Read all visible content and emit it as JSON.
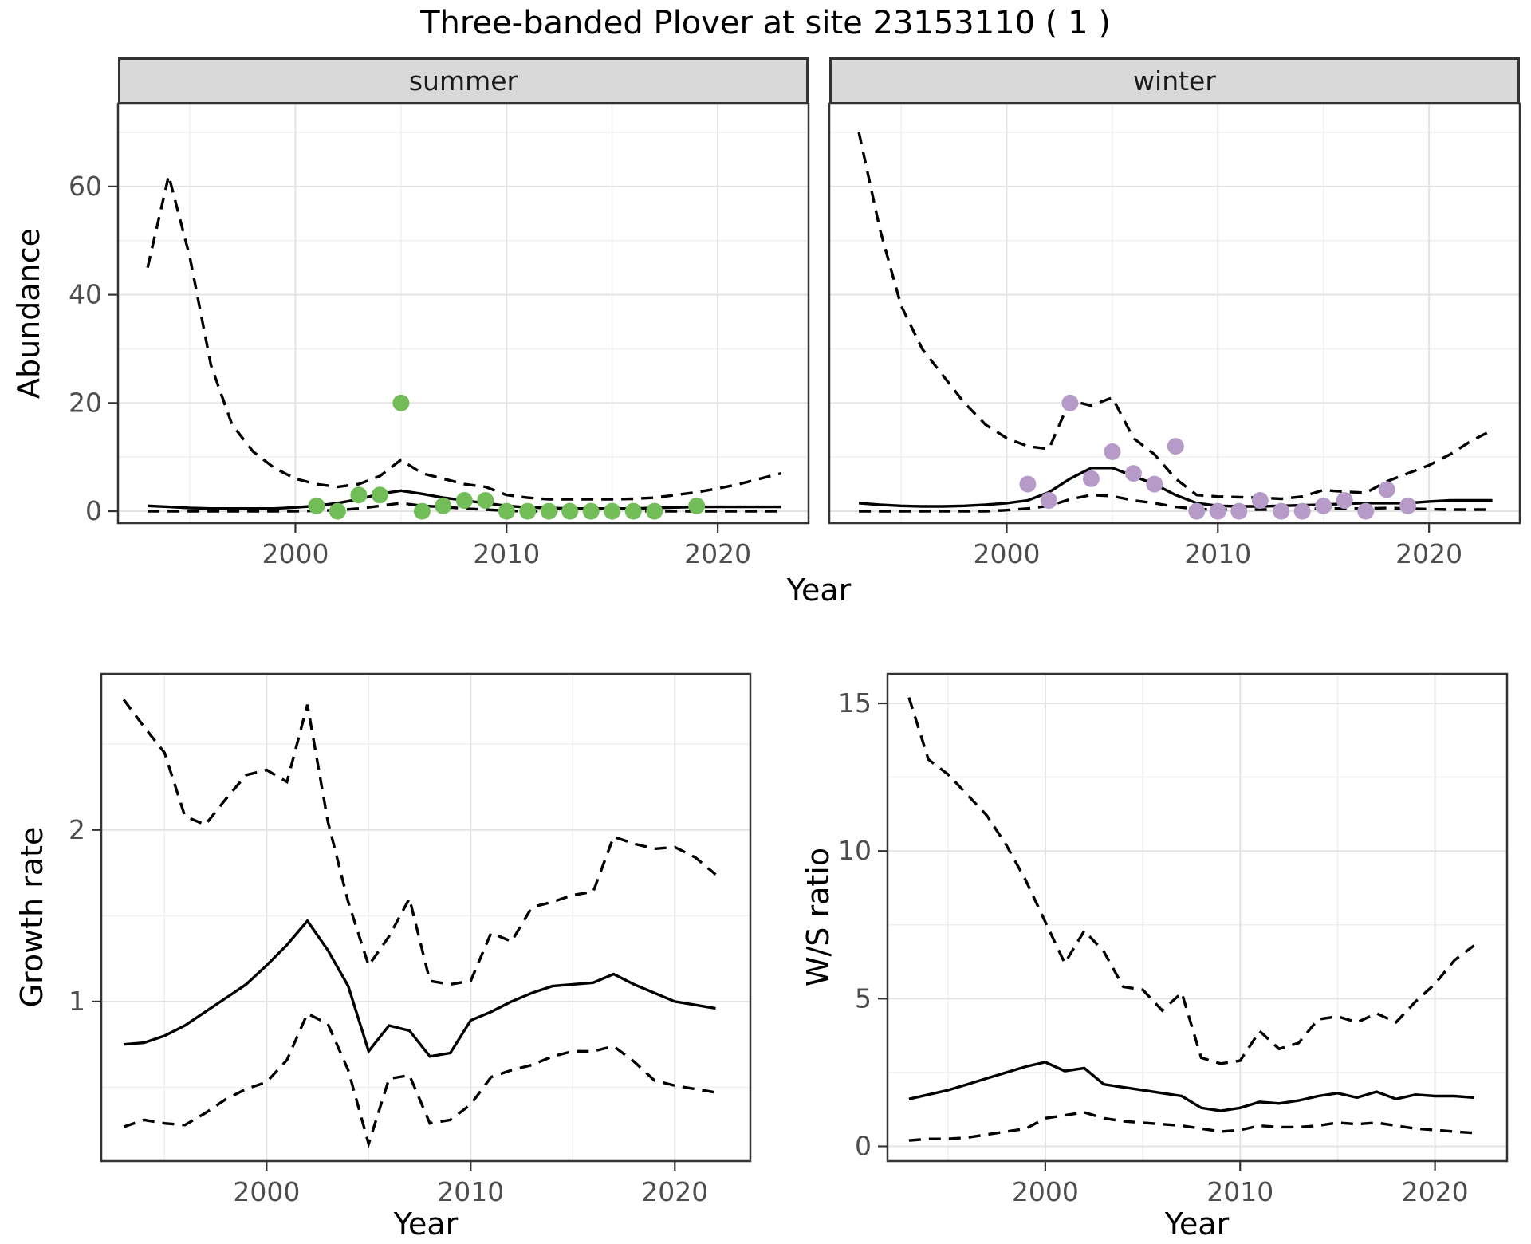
{
  "title": "Three-banded Plover at site 23153110 ( 1 )",
  "axis_titles": {
    "x": "Year",
    "y_abundance": "Abundance",
    "y_growth": "Growth rate",
    "y_ws": "W/S ratio"
  },
  "colors": {
    "line": "#000000",
    "summer_points": "#73bd59",
    "winter_points": "#b69bc9",
    "strip_bg": "#d9d9d9",
    "panel_border": "#333333",
    "grid_major": "#e2e2e2",
    "grid_minor": "#efefef",
    "axis_text": "#4d4d4d"
  },
  "chart_data": [
    {
      "id": "abundance-summer",
      "type": "line",
      "facet_label": "summer",
      "xlabel": "Year",
      "ylabel": "Abundance",
      "xlim": [
        1991.6,
        2024.3
      ],
      "ylim": [
        -2.2,
        75.3
      ],
      "xticks": [
        2000,
        2010,
        2020
      ],
      "xminor": [
        1995,
        2005,
        2015
      ],
      "yticks": [
        0,
        20,
        40,
        60
      ],
      "yminor": [
        10,
        30,
        50,
        70
      ],
      "grid": true,
      "legend": "none",
      "x": [
        1993,
        1994,
        1995,
        1996,
        1997,
        1998,
        1999,
        2000,
        2001,
        2002,
        2003,
        2004,
        2005,
        2006,
        2007,
        2008,
        2009,
        2010,
        2011,
        2012,
        2013,
        2014,
        2015,
        2016,
        2017,
        2018,
        2019,
        2020,
        2021,
        2022,
        2023
      ],
      "series": [
        {
          "name": "upper_95ci",
          "style": "dashed",
          "values": [
            45,
            62,
            47,
            27,
            16,
            11,
            8,
            6,
            5,
            4.5,
            5,
            6.5,
            9.5,
            7,
            6,
            5,
            4.5,
            3,
            2.5,
            2.2,
            2.2,
            2.2,
            2.2,
            2.3,
            2.5,
            3,
            3.5,
            4.2,
            5,
            6,
            7
          ]
        },
        {
          "name": "median",
          "style": "solid",
          "values": [
            1,
            0.8,
            0.6,
            0.5,
            0.5,
            0.5,
            0.5,
            0.7,
            1,
            1.5,
            2.2,
            3.2,
            3.8,
            3.2,
            2.5,
            2,
            1.5,
            1,
            0.7,
            0.6,
            0.5,
            0.5,
            0.5,
            0.5,
            0.6,
            0.7,
            0.8,
            0.8,
            0.8,
            0.8,
            0.8
          ]
        },
        {
          "name": "lower_95ci",
          "style": "dashed",
          "values": [
            0,
            0,
            0,
            0,
            0,
            0,
            0,
            0,
            0.1,
            0.2,
            0.5,
            1,
            1.5,
            1,
            0.8,
            0.5,
            0.3,
            0.1,
            0,
            0,
            0,
            0,
            0,
            0,
            0,
            0,
            0,
            0,
            0,
            0,
            0
          ]
        }
      ],
      "points": {
        "name": "observed_counts",
        "color": "#73bd59",
        "x": [
          2001,
          2002,
          2003,
          2004,
          2005,
          2006,
          2007,
          2008,
          2009,
          2010,
          2011,
          2012,
          2013,
          2014,
          2015,
          2016,
          2017,
          2019
        ],
        "y": [
          1,
          0,
          3,
          3,
          20,
          0,
          1,
          2,
          2,
          0,
          0,
          0,
          0,
          0,
          0,
          0,
          0,
          1
        ]
      }
    },
    {
      "id": "abundance-winter",
      "type": "line",
      "facet_label": "winter",
      "xlabel": "Year",
      "ylabel": "Abundance",
      "xlim": [
        1991.6,
        2024.3
      ],
      "ylim": [
        -2.2,
        75.3
      ],
      "xticks": [
        2000,
        2010,
        2020
      ],
      "xminor": [
        1995,
        2005,
        2015
      ],
      "yticks": [
        0,
        20,
        40,
        60
      ],
      "yminor": [
        10,
        30,
        50,
        70
      ],
      "grid": true,
      "legend": "none",
      "x": [
        1993,
        1994,
        1995,
        1996,
        1997,
        1998,
        1999,
        2000,
        2001,
        2002,
        2003,
        2004,
        2005,
        2006,
        2007,
        2008,
        2009,
        2010,
        2011,
        2012,
        2013,
        2014,
        2015,
        2016,
        2017,
        2018,
        2019,
        2020,
        2021,
        2022,
        2023
      ],
      "series": [
        {
          "name": "upper_95ci",
          "style": "dashed",
          "values": [
            70,
            52,
            38,
            30,
            25,
            20,
            16,
            13.5,
            12,
            11.5,
            20.5,
            19.5,
            21,
            13.5,
            10.5,
            6,
            3,
            2.7,
            2.6,
            2.5,
            2.3,
            2.7,
            3.9,
            3.6,
            3.4,
            5.5,
            7,
            8.5,
            10.5,
            13,
            15
          ]
        },
        {
          "name": "median",
          "style": "solid",
          "values": [
            1.5,
            1.2,
            1,
            0.9,
            0.9,
            1,
            1.2,
            1.5,
            2,
            3.5,
            6,
            8,
            8,
            6.5,
            5,
            3,
            1.5,
            1,
            0.9,
            0.9,
            1,
            1.1,
            1.2,
            1.4,
            1.5,
            1.5,
            1.5,
            1.8,
            2,
            2,
            2
          ]
        },
        {
          "name": "lower_95ci",
          "style": "dashed",
          "values": [
            0,
            0,
            0,
            0,
            0,
            0,
            0,
            0.2,
            0.5,
            1,
            2.2,
            3,
            2.8,
            2,
            1.5,
            0.8,
            0.4,
            0.3,
            0.3,
            0.3,
            0.3,
            0.4,
            0.5,
            0.5,
            0.5,
            0.6,
            0.5,
            0.4,
            0.3,
            0.3,
            0.3
          ]
        }
      ],
      "points": {
        "name": "observed_counts",
        "color": "#b69bc9",
        "x": [
          2001,
          2002,
          2003,
          2004,
          2005,
          2006,
          2007,
          2008,
          2009,
          2010,
          2011,
          2012,
          2013,
          2014,
          2015,
          2016,
          2017,
          2018,
          2019
        ],
        "y": [
          5,
          2,
          20,
          6,
          11,
          7,
          5,
          12,
          0,
          0,
          0,
          2,
          0,
          0,
          1,
          2,
          0,
          4,
          1
        ]
      }
    },
    {
      "id": "growth-rate",
      "type": "line",
      "facet_label": "",
      "xlabel": "Year",
      "ylabel": "Growth rate",
      "xlim": [
        1991.9,
        2023.7
      ],
      "ylim": [
        0.07,
        2.91
      ],
      "xticks": [
        2000,
        2010,
        2020
      ],
      "xminor": [
        1995,
        2005,
        2015
      ],
      "yticks": [
        1,
        2
      ],
      "yminor": [
        0.5,
        1.5,
        2.5
      ],
      "grid": true,
      "legend": "none",
      "x": [
        1993,
        1994,
        1995,
        1996,
        1997,
        1998,
        1999,
        2000,
        2001,
        2002,
        2003,
        2004,
        2005,
        2006,
        2007,
        2008,
        2009,
        2010,
        2011,
        2012,
        2013,
        2014,
        2015,
        2016,
        2017,
        2018,
        2019,
        2020,
        2021,
        2022
      ],
      "series": [
        {
          "name": "upper_95ci",
          "style": "dashed",
          "values": [
            2.76,
            2.6,
            2.45,
            2.08,
            2.03,
            2.18,
            2.32,
            2.35,
            2.28,
            2.73,
            2.05,
            1.58,
            1.21,
            1.38,
            1.6,
            1.12,
            1.1,
            1.12,
            1.4,
            1.35,
            1.55,
            1.58,
            1.62,
            1.64,
            1.96,
            1.92,
            1.89,
            1.9,
            1.84,
            1.74
          ]
        },
        {
          "name": "median",
          "style": "solid",
          "values": [
            0.75,
            0.76,
            0.8,
            0.86,
            0.94,
            1.02,
            1.1,
            1.21,
            1.33,
            1.47,
            1.3,
            1.09,
            0.71,
            0.86,
            0.83,
            0.68,
            0.7,
            0.89,
            0.94,
            1.0,
            1.05,
            1.09,
            1.1,
            1.11,
            1.16,
            1.1,
            1.05,
            1.0,
            0.98,
            0.96
          ]
        },
        {
          "name": "lower_95ci",
          "style": "dashed",
          "values": [
            0.27,
            0.31,
            0.29,
            0.28,
            0.35,
            0.43,
            0.49,
            0.53,
            0.66,
            0.93,
            0.87,
            0.6,
            0.17,
            0.55,
            0.57,
            0.29,
            0.31,
            0.4,
            0.56,
            0.6,
            0.63,
            0.68,
            0.71,
            0.71,
            0.74,
            0.65,
            0.54,
            0.51,
            0.49,
            0.47
          ]
        }
      ],
      "points": null
    },
    {
      "id": "ws-ratio",
      "type": "line",
      "facet_label": "",
      "xlabel": "Year",
      "ylabel": "W/S ratio",
      "xlim": [
        1991.9,
        2023.7
      ],
      "ylim": [
        -0.5,
        16
      ],
      "xticks": [
        2000,
        2010,
        2020
      ],
      "xminor": [
        1995,
        2005,
        2015
      ],
      "yticks": [
        0,
        5,
        10,
        15
      ],
      "yminor": [
        2.5,
        7.5,
        12.5
      ],
      "grid": true,
      "legend": "none",
      "x": [
        1993,
        1994,
        1995,
        1996,
        1997,
        1998,
        1999,
        2000,
        2001,
        2002,
        2003,
        2004,
        2005,
        2006,
        2007,
        2008,
        2009,
        2010,
        2011,
        2012,
        2013,
        2014,
        2015,
        2016,
        2017,
        2018,
        2019,
        2020,
        2021,
        2022
      ],
      "series": [
        {
          "name": "upper_95ci",
          "style": "dashed",
          "values": [
            15.2,
            13.1,
            12.6,
            11.9,
            11.2,
            10.2,
            9.0,
            7.6,
            6.2,
            7.3,
            6.6,
            5.4,
            5.3,
            4.6,
            5.2,
            3.0,
            2.8,
            2.9,
            3.9,
            3.3,
            3.5,
            4.3,
            4.4,
            4.2,
            4.5,
            4.2,
            4.9,
            5.5,
            6.3,
            6.8
          ]
        },
        {
          "name": "median",
          "style": "solid",
          "values": [
            1.6,
            1.75,
            1.9,
            2.1,
            2.3,
            2.5,
            2.7,
            2.85,
            2.55,
            2.65,
            2.1,
            2.0,
            1.9,
            1.8,
            1.7,
            1.3,
            1.2,
            1.3,
            1.5,
            1.45,
            1.55,
            1.7,
            1.8,
            1.65,
            1.85,
            1.6,
            1.75,
            1.7,
            1.7,
            1.65
          ]
        },
        {
          "name": "lower_95ci",
          "style": "dashed",
          "values": [
            0.2,
            0.25,
            0.25,
            0.3,
            0.4,
            0.5,
            0.6,
            0.95,
            1.05,
            1.15,
            0.95,
            0.85,
            0.8,
            0.75,
            0.7,
            0.6,
            0.5,
            0.55,
            0.7,
            0.65,
            0.65,
            0.7,
            0.8,
            0.75,
            0.8,
            0.7,
            0.6,
            0.55,
            0.5,
            0.45
          ]
        }
      ],
      "points": null
    }
  ]
}
